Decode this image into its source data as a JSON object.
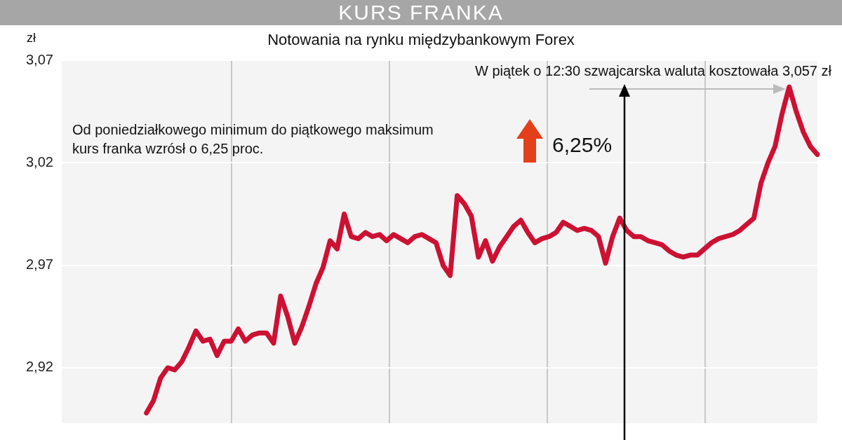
{
  "chart_data": {
    "type": "line",
    "title": "KURS FRANKA",
    "subtitle": "Notowania na rynku międzybankowym Forex",
    "ylabel": "zł",
    "annotations": [
      "W piątek o 12:30 szwajcarska waluta kosztowała 3,057 zł",
      "Od poniedziałkowego minimum do piątkowego maksimum kurs franka wzrósł o 6,25 proc.",
      "6,25%"
    ],
    "categories": [
      null,
      null,
      null,
      null,
      null,
      null,
      null,
      null,
      null,
      null,
      null,
      null,
      null,
      null,
      null,
      null,
      null,
      null,
      null,
      null,
      null,
      null,
      null,
      null,
      null,
      null,
      null,
      null,
      null,
      null,
      null,
      null,
      null,
      null,
      null,
      null,
      null,
      null,
      null,
      null,
      null,
      null,
      null,
      null,
      null,
      null,
      null,
      null,
      null,
      null,
      null,
      null,
      null,
      null,
      null,
      null,
      null,
      null,
      null,
      null,
      null,
      null,
      null,
      null,
      null,
      null,
      null,
      null,
      null,
      null,
      null,
      null,
      null,
      null,
      null,
      null,
      null,
      null,
      null,
      null,
      null,
      null,
      null,
      null,
      null,
      null,
      null,
      null,
      null,
      null,
      null,
      null,
      null,
      null,
      null,
      null,
      null,
      null,
      null,
      null,
      null,
      null,
      null,
      null,
      null,
      null,
      null,
      null
    ],
    "series": [
      {
        "color": "#cc1133",
        "values": [
          null,
          null,
          null,
          null,
          null,
          null,
          null,
          null,
          null,
          null,
          null,
          null,
          2.898,
          2.904,
          2.915,
          2.92,
          2.919,
          2.923,
          2.93,
          2.938,
          2.933,
          2.934,
          2.926,
          2.933,
          2.933,
          2.939,
          2.933,
          2.936,
          2.937,
          2.937,
          2.932,
          2.955,
          2.945,
          2.932,
          2.94,
          2.95,
          2.961,
          2.969,
          2.982,
          2.978,
          2.995,
          2.984,
          2.983,
          2.986,
          2.984,
          2.985,
          2.982,
          2.985,
          2.983,
          2.981,
          2.984,
          2.985,
          2.983,
          2.981,
          2.97,
          2.965,
          3.004,
          3.0,
          2.994,
          2.974,
          2.982,
          2.972,
          2.979,
          2.984,
          2.989,
          2.992,
          2.986,
          2.981,
          2.983,
          2.984,
          2.986,
          2.991,
          2.989,
          2.987,
          2.988,
          2.987,
          2.984,
          2.971,
          2.984,
          2.993,
          2.987,
          2.984,
          2.984,
          2.982,
          2.981,
          2.98,
          2.977,
          2.975,
          2.974,
          2.975,
          2.975,
          2.978,
          2.981,
          2.983,
          2.984,
          2.985,
          2.987,
          2.99,
          2.993,
          3.01,
          3.02,
          3.028,
          3.044,
          3.057,
          3.045,
          3.035,
          3.028,
          3.024
        ]
      }
    ],
    "ylim": [
      2.893,
      3.07
    ],
    "yticks": [
      {
        "value": 2.92,
        "label": "2,92"
      },
      {
        "value": 2.97,
        "label": "2,97"
      },
      {
        "value": 3.02,
        "label": "3,02"
      },
      {
        "value": 3.07,
        "label": "3,07"
      }
    ],
    "grid": "y",
    "tick_labels": "y",
    "marker": "none",
    "line_style": "solid"
  }
}
